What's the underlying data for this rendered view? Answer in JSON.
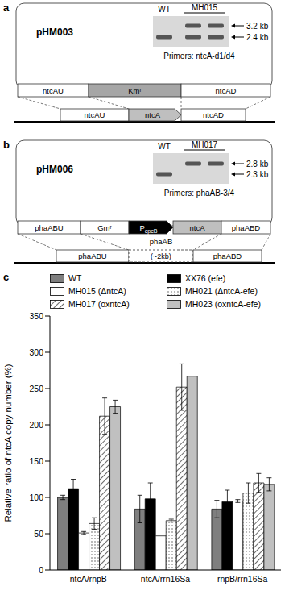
{
  "panels": [
    {
      "label": "a",
      "plasmid": "pHM003",
      "gel": {
        "lanes": [
          "WT",
          "MH015"
        ],
        "bands": [
          "3.2 kb",
          "2.4 kb"
        ],
        "primers": "Primers: ntcA-d1/d4"
      },
      "construct": [
        "ntcAU",
        "Kmʳ",
        "ntcAD"
      ],
      "genome": [
        "ntcAU",
        "ntcA",
        "ntcAD"
      ]
    },
    {
      "label": "b",
      "plasmid": "pHM006",
      "gel": {
        "lanes": [
          "WT",
          "MH017"
        ],
        "bands": [
          "2.8 kb",
          "2.3 kb"
        ],
        "primers": "Primers: phaAB-3/4"
      },
      "construct": [
        "phaABU",
        "Gmʳ",
        {
          "main": "P",
          "sub": "cpcB"
        },
        "ntcA",
        "phaABD"
      ],
      "genome": [
        "phaABU",
        {
          "label": "phaAB",
          "note": "(~2kb)"
        },
        "phaABD"
      ]
    }
  ],
  "chart_data": {
    "label": "c",
    "type": "bar",
    "categories": [
      "ntcA/rnpB",
      "ntcA/rrn16Sa",
      "rnpB/rrn16Sa"
    ],
    "ylabel": "Relative ratio of ntcA copy number (%)",
    "ylim": [
      0,
      350
    ],
    "yticks": [
      0,
      50,
      100,
      150,
      200,
      250,
      300,
      350
    ],
    "legend": "top",
    "series": [
      {
        "name": "WT",
        "color": "#7f7f7f",
        "values": [
          100,
          84,
          84
        ],
        "errors": [
          3,
          19,
          12
        ]
      },
      {
        "name": "XX76 (efe)",
        "color": "#000000",
        "values": [
          112,
          98,
          94
        ],
        "errors": [
          13,
          22,
          16
        ]
      },
      {
        "name": "MH015 (ΔntcA)",
        "color": "#ffffff",
        "values": [
          51,
          47,
          95
        ],
        "errors": [
          2,
          0,
          2
        ]
      },
      {
        "name": "MH021 (ΔntcA-efe)",
        "color": "#ffffff",
        "values": [
          64,
          68,
          106
        ],
        "errors": [
          8,
          2,
          14
        ]
      },
      {
        "name": "MH017 (oxntcA)",
        "color": "#ffffff",
        "values": [
          212,
          252,
          120
        ],
        "errors": [
          25,
          32,
          13
        ]
      },
      {
        "name": "MH023 (oxntcA-efe)",
        "color": "#c0c0c0",
        "values": [
          225,
          267,
          118
        ],
        "errors": [
          9,
          0,
          9
        ]
      }
    ]
  }
}
